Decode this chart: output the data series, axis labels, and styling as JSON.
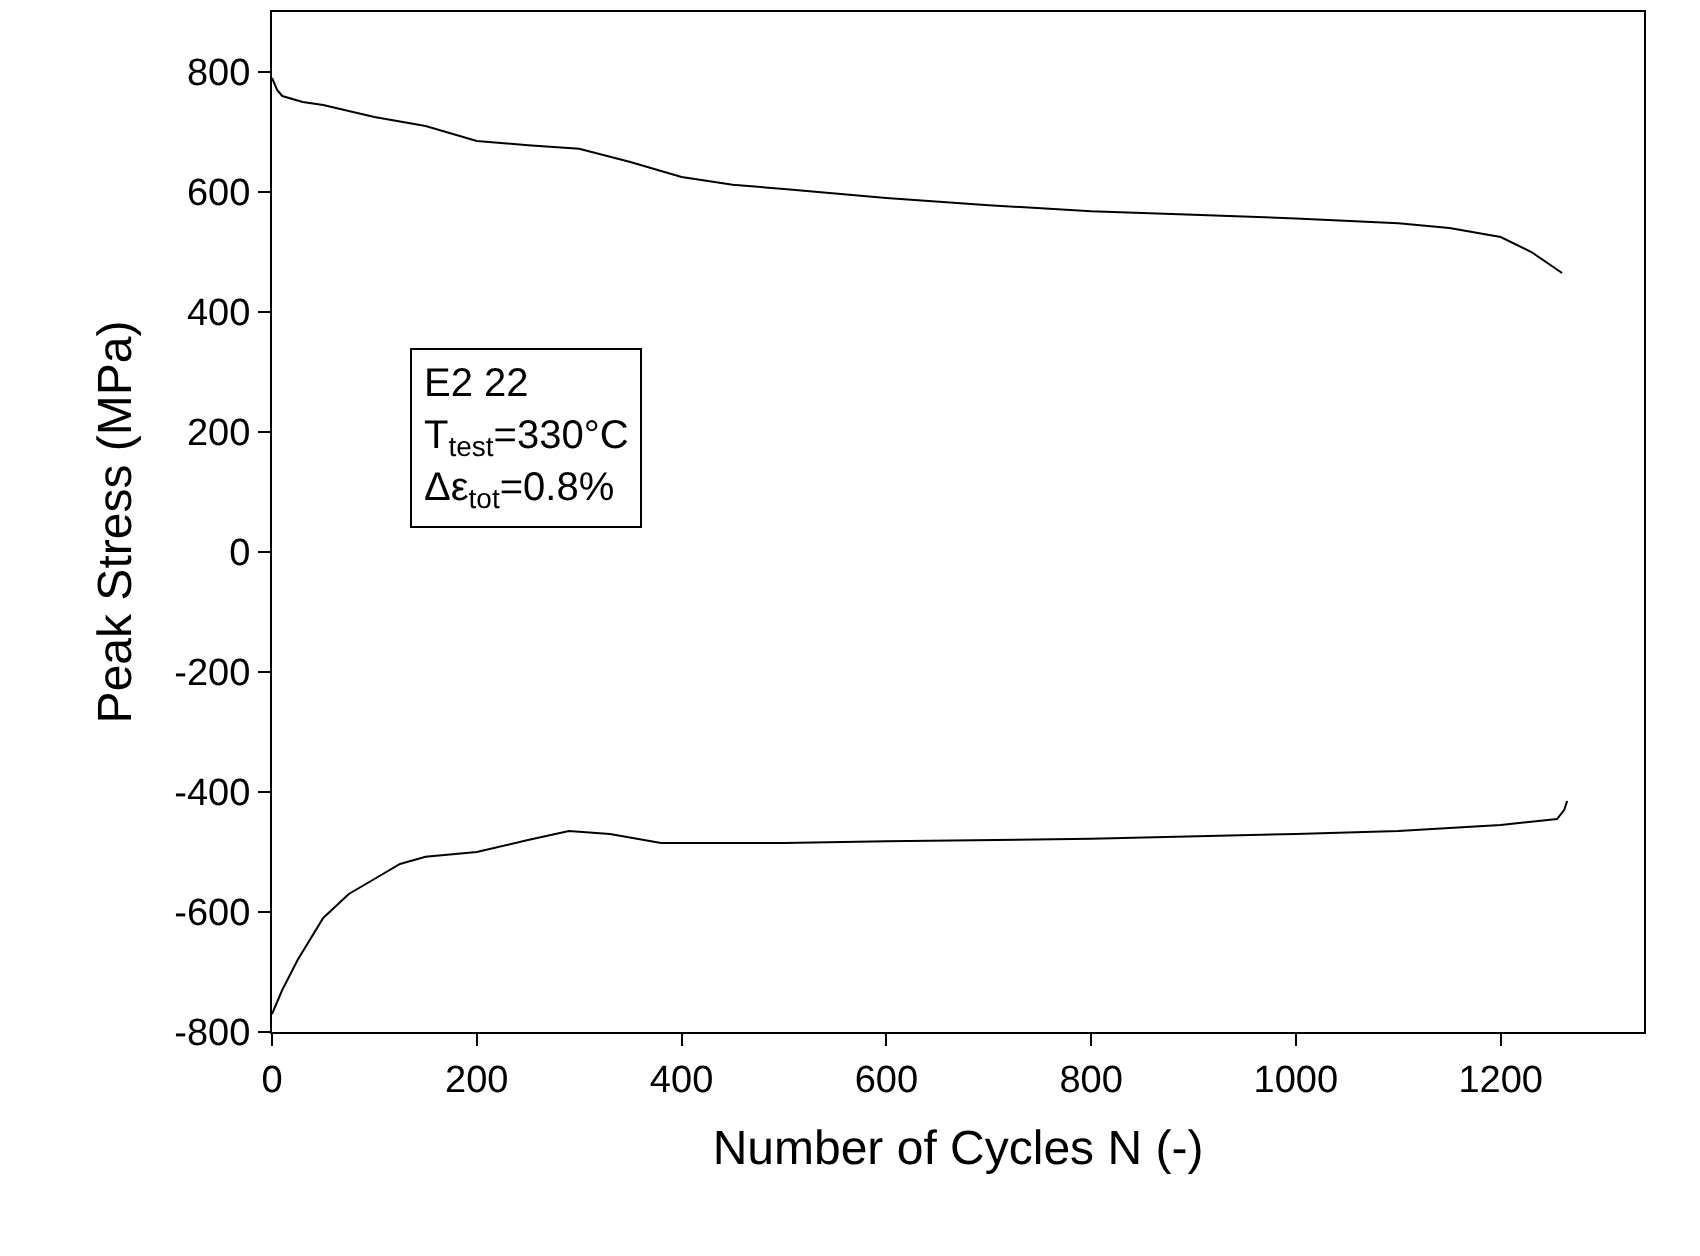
{
  "chart_data": {
    "type": "line",
    "xlabel": "Number of Cycles N (-)",
    "ylabel": "Peak Stress (MPa)",
    "xlim": [
      0,
      1340
    ],
    "ylim": [
      -800,
      900
    ],
    "xticks": [
      0,
      200,
      400,
      600,
      800,
      1000,
      1200
    ],
    "yticks": [
      -800,
      -600,
      -400,
      -200,
      0,
      200,
      400,
      600,
      800
    ],
    "marker": "none",
    "line_style": "solid",
    "annotations": [
      "E2 22\nT$_{test}$=330°C\nΔε$_{tot}$=0.8%"
    ],
    "series": [
      {
        "color": "#000000",
        "x": [
          0,
          5,
          10,
          30,
          50,
          100,
          150,
          200,
          250,
          300,
          350,
          400,
          450,
          500,
          600,
          700,
          800,
          900,
          1000,
          1100,
          1150,
          1200,
          1230,
          1260
        ],
        "values": [
          790,
          770,
          760,
          750,
          745,
          725,
          710,
          685,
          678,
          672,
          650,
          625,
          612,
          605,
          590,
          578,
          568,
          562,
          556,
          548,
          540,
          525,
          500,
          465
        ]
      },
      {
        "color": "#000000",
        "x": [
          0,
          5,
          10,
          25,
          50,
          75,
          100,
          125,
          150,
          200,
          250,
          290,
          330,
          380,
          500,
          600,
          800,
          1000,
          1100,
          1200,
          1255,
          1262,
          1265
        ],
        "values": [
          -770,
          -750,
          -730,
          -680,
          -610,
          -570,
          -545,
          -520,
          -508,
          -500,
          -480,
          -465,
          -470,
          -485,
          -485,
          -482,
          -478,
          -470,
          -465,
          -455,
          -445,
          -430,
          -415
        ]
      }
    ]
  }
}
